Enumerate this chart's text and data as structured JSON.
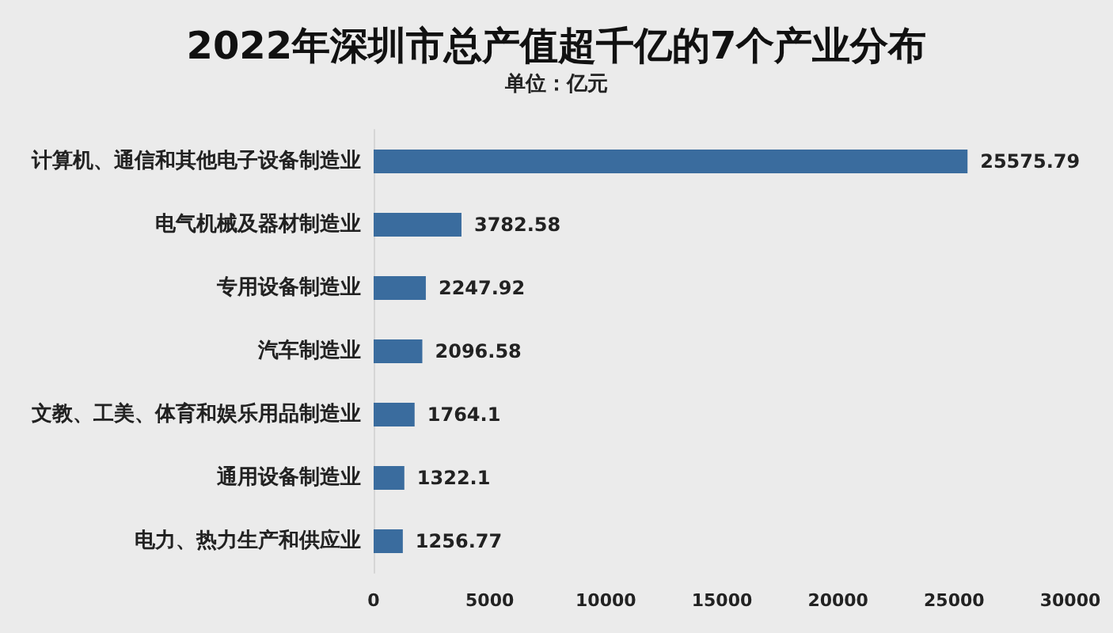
{
  "chart_data": {
    "type": "bar",
    "orientation": "horizontal",
    "title": "2022年深圳市总产值超千亿的7个产业分布",
    "subtitle": "单位：亿元",
    "categories": [
      "计算机、通信和其他电子设备制造业",
      "电气机械及器材制造业",
      "专用设备制造业",
      "汽车制造业",
      "文教、工美、体育和娱乐用品制造业",
      "通用设备制造业",
      "电力、热力生产和供应业"
    ],
    "values": [
      25575.79,
      3782.58,
      2247.92,
      2096.58,
      1764.1,
      1322.1,
      1256.77
    ],
    "color": "#3a6c9e",
    "data_labels": true,
    "xlim": [
      0,
      30000
    ],
    "xticks": [
      0,
      5000,
      10000,
      15000,
      20000,
      25000,
      30000
    ]
  }
}
